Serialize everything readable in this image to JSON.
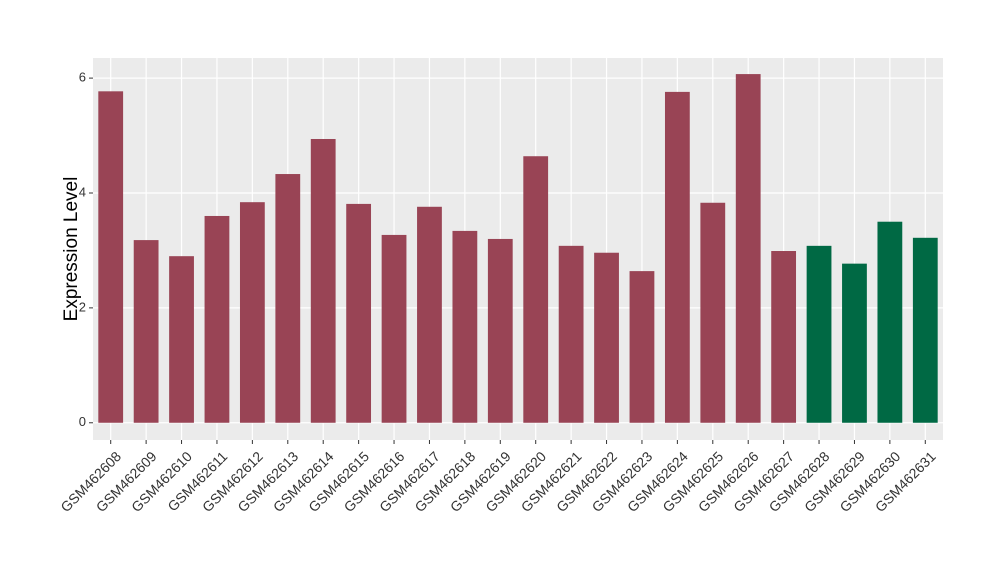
{
  "chart_data": {
    "type": "bar",
    "y_label": "Expression Level",
    "categories": [
      "GSM462608",
      "GSM462609",
      "GSM462610",
      "GSM462611",
      "GSM462612",
      "GSM462613",
      "GSM462614",
      "GSM462615",
      "GSM462616",
      "GSM462617",
      "GSM462618",
      "GSM462619",
      "GSM462620",
      "GSM462621",
      "GSM462622",
      "GSM462623",
      "GSM462624",
      "GSM462625",
      "GSM462626",
      "GSM462627",
      "GSM462628",
      "GSM462629",
      "GSM462630",
      "GSM462631"
    ],
    "values": [
      5.77,
      3.18,
      2.9,
      3.6,
      3.84,
      4.33,
      4.94,
      3.81,
      3.27,
      3.76,
      3.34,
      3.2,
      4.64,
      3.08,
      2.96,
      2.64,
      5.76,
      3.83,
      6.07,
      2.99,
      3.08,
      2.77,
      3.5,
      3.22
    ],
    "colors": [
      "#994455",
      "#994455",
      "#994455",
      "#994455",
      "#994455",
      "#994455",
      "#994455",
      "#994455",
      "#994455",
      "#994455",
      "#994455",
      "#994455",
      "#994455",
      "#994455",
      "#994455",
      "#994455",
      "#994455",
      "#994455",
      "#994455",
      "#994455",
      "#006944",
      "#006944",
      "#006944",
      "#006944"
    ],
    "ylim": [
      -0.3,
      6.35
    ],
    "yticks": [
      0,
      2,
      4,
      6
    ],
    "grid": true
  }
}
